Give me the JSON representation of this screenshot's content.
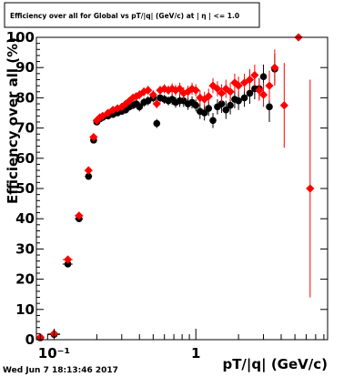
{
  "footer": {
    "timestamp": "Wed Jun  7 18:13:46 2017"
  },
  "chart_data": {
    "type": "scatter",
    "title": "Efficiency over all for Global vs pT/|q| (GeV/c) at | η | <= 1.0",
    "xlabel": "pT/|q| (GeV/c)",
    "ylabel": "Efficiency over all (%)",
    "x_scale": "log",
    "xlim": [
      0.075,
      8.5
    ],
    "ylim": [
      0,
      100
    ],
    "x_tick_labels": [
      {
        "value": 0.1,
        "label": "10⁻¹"
      },
      {
        "value": 1,
        "label": "1"
      }
    ],
    "y_ticks": [
      0,
      10,
      20,
      30,
      40,
      50,
      60,
      70,
      80,
      90,
      100
    ],
    "grid": false,
    "legend": "none",
    "series": [
      {
        "color": "#000000",
        "marker": "circle",
        "points": [
          [
            0.08,
            0.6,
            0.005,
            0.3
          ],
          [
            0.1,
            1.7,
            0.01,
            0.5
          ],
          [
            0.125,
            25.0,
            0.01,
            1.0
          ],
          [
            0.15,
            40.0,
            0.01,
            1.0
          ],
          [
            0.175,
            54.0,
            0.01,
            1.0
          ],
          [
            0.19,
            66.0,
            0.008,
            1.0
          ],
          [
            0.2,
            72.0,
            0.005,
            1.0
          ],
          [
            0.21,
            73.0,
            0.005,
            1.0
          ],
          [
            0.22,
            73.5,
            0.005,
            1.0
          ],
          [
            0.24,
            74.0,
            0.005,
            1.0
          ],
          [
            0.26,
            74.5,
            0.005,
            1.0
          ],
          [
            0.28,
            75.0,
            0.005,
            1.0
          ],
          [
            0.3,
            75.5,
            0.005,
            1.0
          ],
          [
            0.32,
            76.0,
            0.005,
            1.2
          ],
          [
            0.34,
            77.0,
            0.005,
            1.2
          ],
          [
            0.36,
            77.5,
            0.005,
            1.2
          ],
          [
            0.38,
            78.0,
            0.005,
            1.2
          ],
          [
            0.4,
            77.0,
            0.005,
            1.5
          ],
          [
            0.43,
            78.5,
            0.005,
            1.5
          ],
          [
            0.46,
            79.0,
            0.005,
            1.5
          ],
          [
            0.5,
            80.0,
            0.005,
            1.5
          ],
          [
            0.53,
            71.5,
            0.005,
            1.5
          ],
          [
            0.56,
            80.0,
            0.005,
            1.5
          ],
          [
            0.6,
            79.5,
            0.005,
            1.5
          ],
          [
            0.64,
            79.0,
            0.005,
            1.5
          ],
          [
            0.68,
            79.5,
            0.005,
            1.8
          ],
          [
            0.72,
            78.5,
            0.005,
            1.8
          ],
          [
            0.77,
            79.0,
            0.005,
            2.0
          ],
          [
            0.82,
            79.0,
            0.005,
            2.0
          ],
          [
            0.88,
            78.0,
            0.005,
            2.0
          ],
          [
            0.94,
            78.5,
            0.005,
            2.0
          ],
          [
            1.0,
            77.5,
            0.005,
            2.0
          ],
          [
            1.07,
            75.5,
            0.005,
            2.5
          ],
          [
            1.15,
            75.0,
            0.005,
            2.5
          ],
          [
            1.23,
            76.5,
            0.005,
            2.5
          ],
          [
            1.32,
            72.5,
            0.005,
            2.5
          ],
          [
            1.42,
            77.0,
            0.005,
            2.5
          ],
          [
            1.52,
            78.0,
            0.005,
            3.0
          ],
          [
            1.63,
            76.0,
            0.005,
            3.0
          ],
          [
            1.75,
            77.5,
            0.005,
            3.0
          ],
          [
            1.88,
            79.5,
            0.005,
            3.0
          ],
          [
            2.0,
            79.0,
            0.005,
            3.0
          ],
          [
            2.2,
            80.0,
            0.005,
            3.0
          ],
          [
            2.4,
            81.5,
            0.005,
            3.5
          ],
          [
            2.6,
            83.0,
            0.005,
            3.5
          ],
          [
            2.8,
            83.0,
            0.005,
            3.5
          ],
          [
            3.0,
            87.0,
            0.005,
            4.0
          ],
          [
            3.3,
            77.0,
            0.005,
            5.0
          ],
          [
            3.6,
            89.5,
            0.005,
            5.0
          ]
        ]
      },
      {
        "color": "#ff0000",
        "marker": "diamond",
        "points": [
          [
            0.08,
            0.8,
            0.005,
            0.3
          ],
          [
            0.1,
            2.0,
            0.01,
            0.5
          ],
          [
            0.125,
            26.5,
            0.01,
            1.0
          ],
          [
            0.15,
            41.0,
            0.01,
            1.0
          ],
          [
            0.175,
            56.0,
            0.01,
            1.0
          ],
          [
            0.19,
            67.0,
            0.008,
            1.0
          ],
          [
            0.2,
            72.5,
            0.005,
            1.0
          ],
          [
            0.21,
            73.5,
            0.005,
            1.0
          ],
          [
            0.22,
            74.0,
            0.005,
            1.0
          ],
          [
            0.24,
            75.0,
            0.005,
            1.0
          ],
          [
            0.26,
            76.0,
            0.005,
            1.0
          ],
          [
            0.28,
            76.5,
            0.005,
            1.0
          ],
          [
            0.3,
            77.0,
            0.005,
            1.0
          ],
          [
            0.32,
            78.0,
            0.005,
            1.2
          ],
          [
            0.34,
            79.0,
            0.005,
            1.2
          ],
          [
            0.36,
            80.0,
            0.005,
            1.2
          ],
          [
            0.38,
            80.5,
            0.005,
            1.2
          ],
          [
            0.4,
            81.0,
            0.005,
            1.5
          ],
          [
            0.43,
            82.0,
            0.005,
            1.5
          ],
          [
            0.46,
            82.5,
            0.005,
            1.5
          ],
          [
            0.5,
            81.0,
            0.005,
            1.5
          ],
          [
            0.53,
            78.0,
            0.005,
            1.5
          ],
          [
            0.56,
            82.5,
            0.005,
            1.5
          ],
          [
            0.6,
            83.0,
            0.005,
            1.5
          ],
          [
            0.64,
            82.5,
            0.005,
            1.5
          ],
          [
            0.68,
            83.0,
            0.005,
            1.8
          ],
          [
            0.72,
            82.5,
            0.005,
            1.8
          ],
          [
            0.77,
            83.0,
            0.005,
            2.0
          ],
          [
            0.82,
            81.5,
            0.005,
            2.0
          ],
          [
            0.88,
            82.0,
            0.005,
            2.0
          ],
          [
            0.94,
            83.0,
            0.005,
            2.0
          ],
          [
            1.0,
            82.5,
            0.005,
            2.0
          ],
          [
            1.07,
            80.0,
            0.005,
            2.5
          ],
          [
            1.15,
            79.5,
            0.005,
            2.5
          ],
          [
            1.23,
            80.5,
            0.005,
            2.5
          ],
          [
            1.32,
            84.0,
            0.005,
            2.5
          ],
          [
            1.42,
            83.0,
            0.005,
            2.5
          ],
          [
            1.52,
            81.5,
            0.005,
            3.0
          ],
          [
            1.63,
            83.0,
            0.005,
            3.0
          ],
          [
            1.75,
            82.0,
            0.005,
            3.0
          ],
          [
            1.88,
            85.0,
            0.005,
            3.0
          ],
          [
            2.0,
            84.0,
            0.005,
            3.0
          ],
          [
            2.2,
            85.0,
            0.005,
            3.0
          ],
          [
            2.4,
            86.0,
            0.005,
            3.5
          ],
          [
            2.6,
            87.5,
            0.005,
            3.5
          ],
          [
            2.8,
            82.5,
            0.005,
            3.5
          ],
          [
            3.0,
            81.0,
            0.005,
            4.0
          ],
          [
            3.3,
            84.0,
            0.005,
            5.0
          ],
          [
            3.6,
            90.0,
            0.005,
            6.0
          ],
          [
            4.2,
            77.5,
            0.005,
            14.0
          ],
          [
            5.3,
            100.0,
            0.005,
            1.0
          ],
          [
            6.4,
            50.0,
            0.005,
            36.0
          ]
        ]
      }
    ]
  }
}
